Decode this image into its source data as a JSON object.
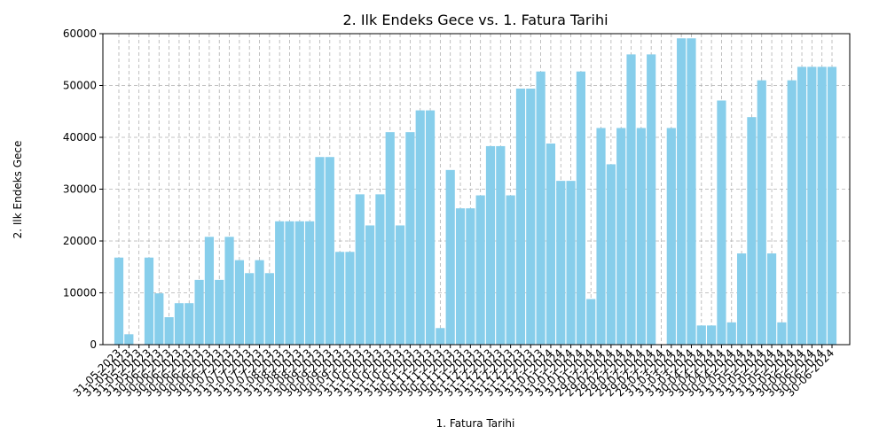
{
  "chart_data": {
    "type": "bar",
    "title": "2. Ilk Endeks Gece vs. 1. Fatura Tarihi",
    "x_label": "1. Fatura Tarihi",
    "y_label": "2. Ilk Endeks Gece",
    "color": "#87ceeb",
    "grid": true,
    "categories": [
      "31-05-2023",
      "31-05-2023",
      "31-05-2023",
      "31-05-2023",
      "30-06-2023",
      "30-06-2023",
      "30-06-2023",
      "30-06-2023",
      "30-06-2023",
      "30-06-2023",
      "30-06-2023",
      "31-07-2023",
      "31-07-2023",
      "31-07-2023",
      "31-07-2023",
      "31-07-2023",
      "31-08-2023",
      "31-08-2023",
      "31-08-2023",
      "31-08-2023",
      "30-09-2023",
      "30-09-2023",
      "30-09-2023",
      "30-09-2023",
      "31-10-2023",
      "31-10-2023",
      "31-10-2023",
      "31-10-2023",
      "31-10-2023",
      "31-10-2023",
      "30-11-2023",
      "30-11-2023",
      "30-11-2023",
      "30-11-2023",
      "30-11-2023",
      "30-11-2023",
      "31-12-2023",
      "31-12-2023",
      "31-12-2023",
      "31-12-2023",
      "31-12-2023",
      "31-12-2023",
      "31-12-2023",
      "31-01-2024",
      "31-01-2024",
      "31-01-2024",
      "31-01-2024",
      "31-01-2024",
      "29-02-2024",
      "29-02-2024",
      "29-02-2024",
      "29-02-2024",
      "29-02-2024",
      "29-02-2024",
      "29-02-2024",
      "31-03-2024",
      "31-03-2024",
      "31-03-2024",
      "30-04-2024",
      "30-04-2024",
      "30-04-2024",
      "30-04-2024",
      "31-05-2024",
      "31-05-2024",
      "31-05-2024",
      "31-05-2024",
      "31-05-2024",
      "31-05-2024",
      "30-06-2024",
      "30-06-2024",
      "30-06-2024",
      "30-06-2024"
    ],
    "values": [
      16800,
      2000,
      0,
      16800,
      9900,
      5300,
      8000,
      8000,
      12500,
      20800,
      12500,
      20800,
      16300,
      13800,
      16300,
      13800,
      23800,
      23800,
      23800,
      23800,
      36200,
      36200,
      17900,
      17900,
      29000,
      23000,
      29000,
      41000,
      23000,
      41000,
      45200,
      45200,
      3200,
      33700,
      26300,
      26300,
      28800,
      38300,
      38300,
      28800,
      49400,
      49400,
      52700,
      38800,
      31600,
      31600,
      52700,
      8800,
      41800,
      34800,
      41800,
      56000,
      41800,
      56000,
      0,
      41800,
      59100,
      59100,
      3700,
      3700,
      47100,
      4300,
      17600,
      43900,
      51000,
      17600,
      4300,
      51000,
      53600,
      53600,
      53600,
      53600
    ],
    "ylim": [
      0,
      60000
    ],
    "yticks": [
      0,
      10000,
      20000,
      30000,
      40000,
      50000,
      60000
    ]
  }
}
